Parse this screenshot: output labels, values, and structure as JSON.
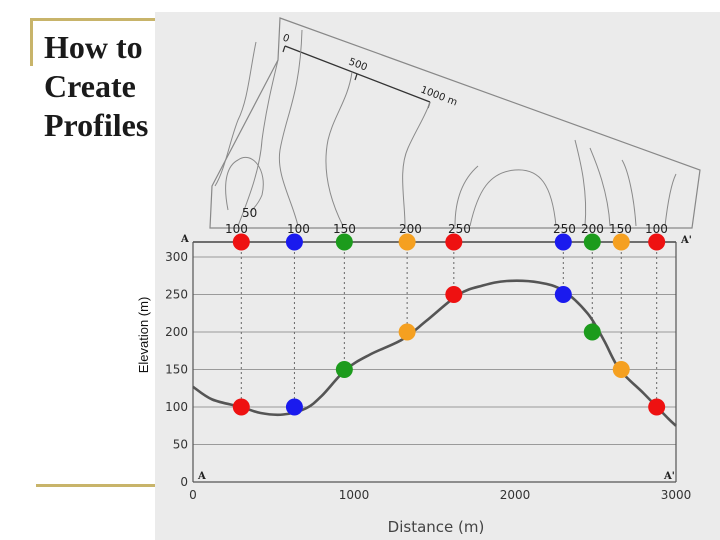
{
  "slide": {
    "title_lines": [
      "How to",
      "Create",
      "Profiles"
    ]
  },
  "scale_bar": {
    "labels": [
      "0",
      "500",
      "1000 m"
    ]
  },
  "contour_labels": [
    "50",
    "100",
    "100",
    "150",
    "200",
    "250",
    "250",
    "200",
    "150",
    "100"
  ],
  "section": {
    "start_label": "A",
    "end_label": "A'"
  },
  "chart_data": {
    "type": "line",
    "xlabel": "Distance (m)",
    "ylabel": "Elevation (m)",
    "xlim": [
      0,
      3000
    ],
    "ylim": [
      0,
      320
    ],
    "x_ticks": [
      0,
      1000,
      2000,
      3000
    ],
    "y_ticks": [
      0,
      50,
      100,
      150,
      200,
      250,
      300
    ],
    "x_tick_labels": [
      "0",
      "1000",
      "2000",
      "3000"
    ],
    "y_tick_labels": [
      "0",
      "50",
      "100",
      "150",
      "200",
      "250",
      "300"
    ],
    "profile": [
      [
        0,
        127
      ],
      [
        120,
        110
      ],
      [
        300,
        100
      ],
      [
        420,
        92
      ],
      [
        560,
        90
      ],
      [
        700,
        98
      ],
      [
        800,
        115
      ],
      [
        950,
        150
      ],
      [
        1100,
        170
      ],
      [
        1300,
        190
      ],
      [
        1450,
        215
      ],
      [
        1650,
        250
      ],
      [
        1800,
        262
      ],
      [
        1950,
        268
      ],
      [
        2150,
        266
      ],
      [
        2300,
        255
      ],
      [
        2450,
        225
      ],
      [
        2550,
        190
      ],
      [
        2650,
        150
      ],
      [
        2800,
        118
      ],
      [
        2950,
        85
      ],
      [
        3000,
        75
      ]
    ],
    "crossings": [
      {
        "x": 300,
        "elev": 100,
        "color": "#ee1111"
      },
      {
        "x": 630,
        "elev": 100,
        "color": "#1a1aee"
      },
      {
        "x": 940,
        "elev": 150,
        "color": "#1c9b1c"
      },
      {
        "x": 1330,
        "elev": 200,
        "color": "#f5a020"
      },
      {
        "x": 1620,
        "elev": 250,
        "color": "#ee1111"
      },
      {
        "x": 2300,
        "elev": 250,
        "color": "#1a1aee"
      },
      {
        "x": 2480,
        "elev": 200,
        "color": "#1c9b1c"
      },
      {
        "x": 2660,
        "elev": 150,
        "color": "#f5a020"
      },
      {
        "x": 2880,
        "elev": 100,
        "color": "#ee1111"
      }
    ]
  }
}
